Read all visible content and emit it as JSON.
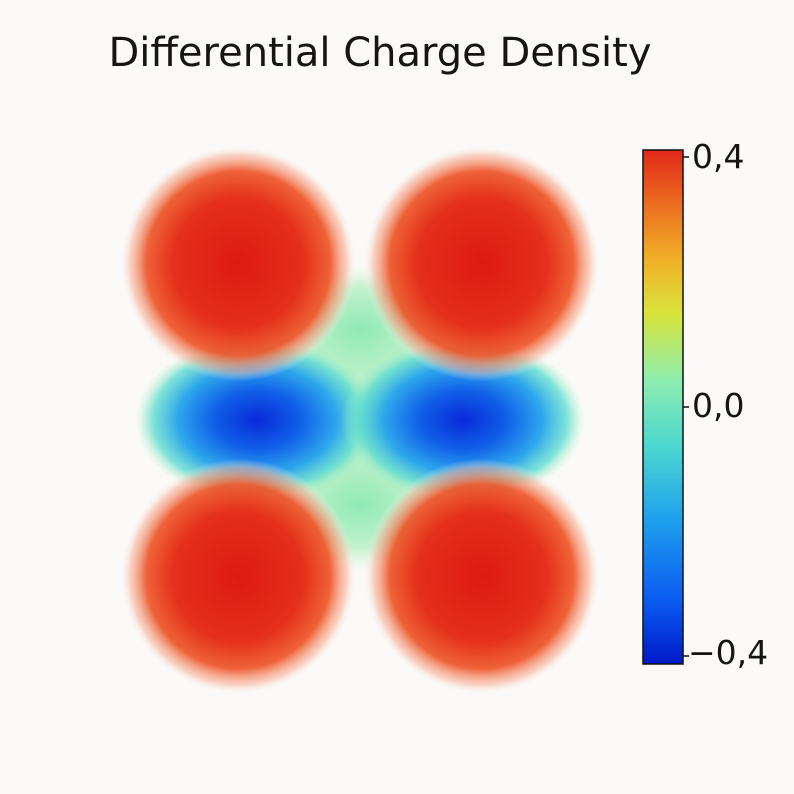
{
  "chart_data": {
    "type": "heatmap",
    "title": "Differential Charge Density",
    "colorbar": {
      "min": -0.4,
      "max": 0.4,
      "ticks": [
        {
          "value": 0.4,
          "label": "0,4"
        },
        {
          "value": 0.0,
          "label": "0,0"
        },
        {
          "value": -0.4,
          "label": "−0,4"
        }
      ],
      "colormap": [
        "#0019c8",
        "#0a5af0",
        "#1ea0ee",
        "#4ad6d0",
        "#8cedb0",
        "#d8e43c",
        "#f0b428",
        "#ec6a20",
        "#e02818"
      ]
    },
    "lobes": [
      {
        "name": "accumulation-top-left",
        "x": 0.24,
        "y": 0.21,
        "value": 0.4
      },
      {
        "name": "accumulation-top-right",
        "x": 0.76,
        "y": 0.21,
        "value": 0.4
      },
      {
        "name": "accumulation-bottom-left",
        "x": 0.24,
        "y": 0.79,
        "value": 0.4
      },
      {
        "name": "accumulation-bottom-right",
        "x": 0.76,
        "y": 0.79,
        "value": 0.4
      },
      {
        "name": "depletion-left",
        "x": 0.28,
        "y": 0.5,
        "value": -0.4
      },
      {
        "name": "depletion-right",
        "x": 0.72,
        "y": 0.5,
        "value": -0.4
      }
    ]
  }
}
